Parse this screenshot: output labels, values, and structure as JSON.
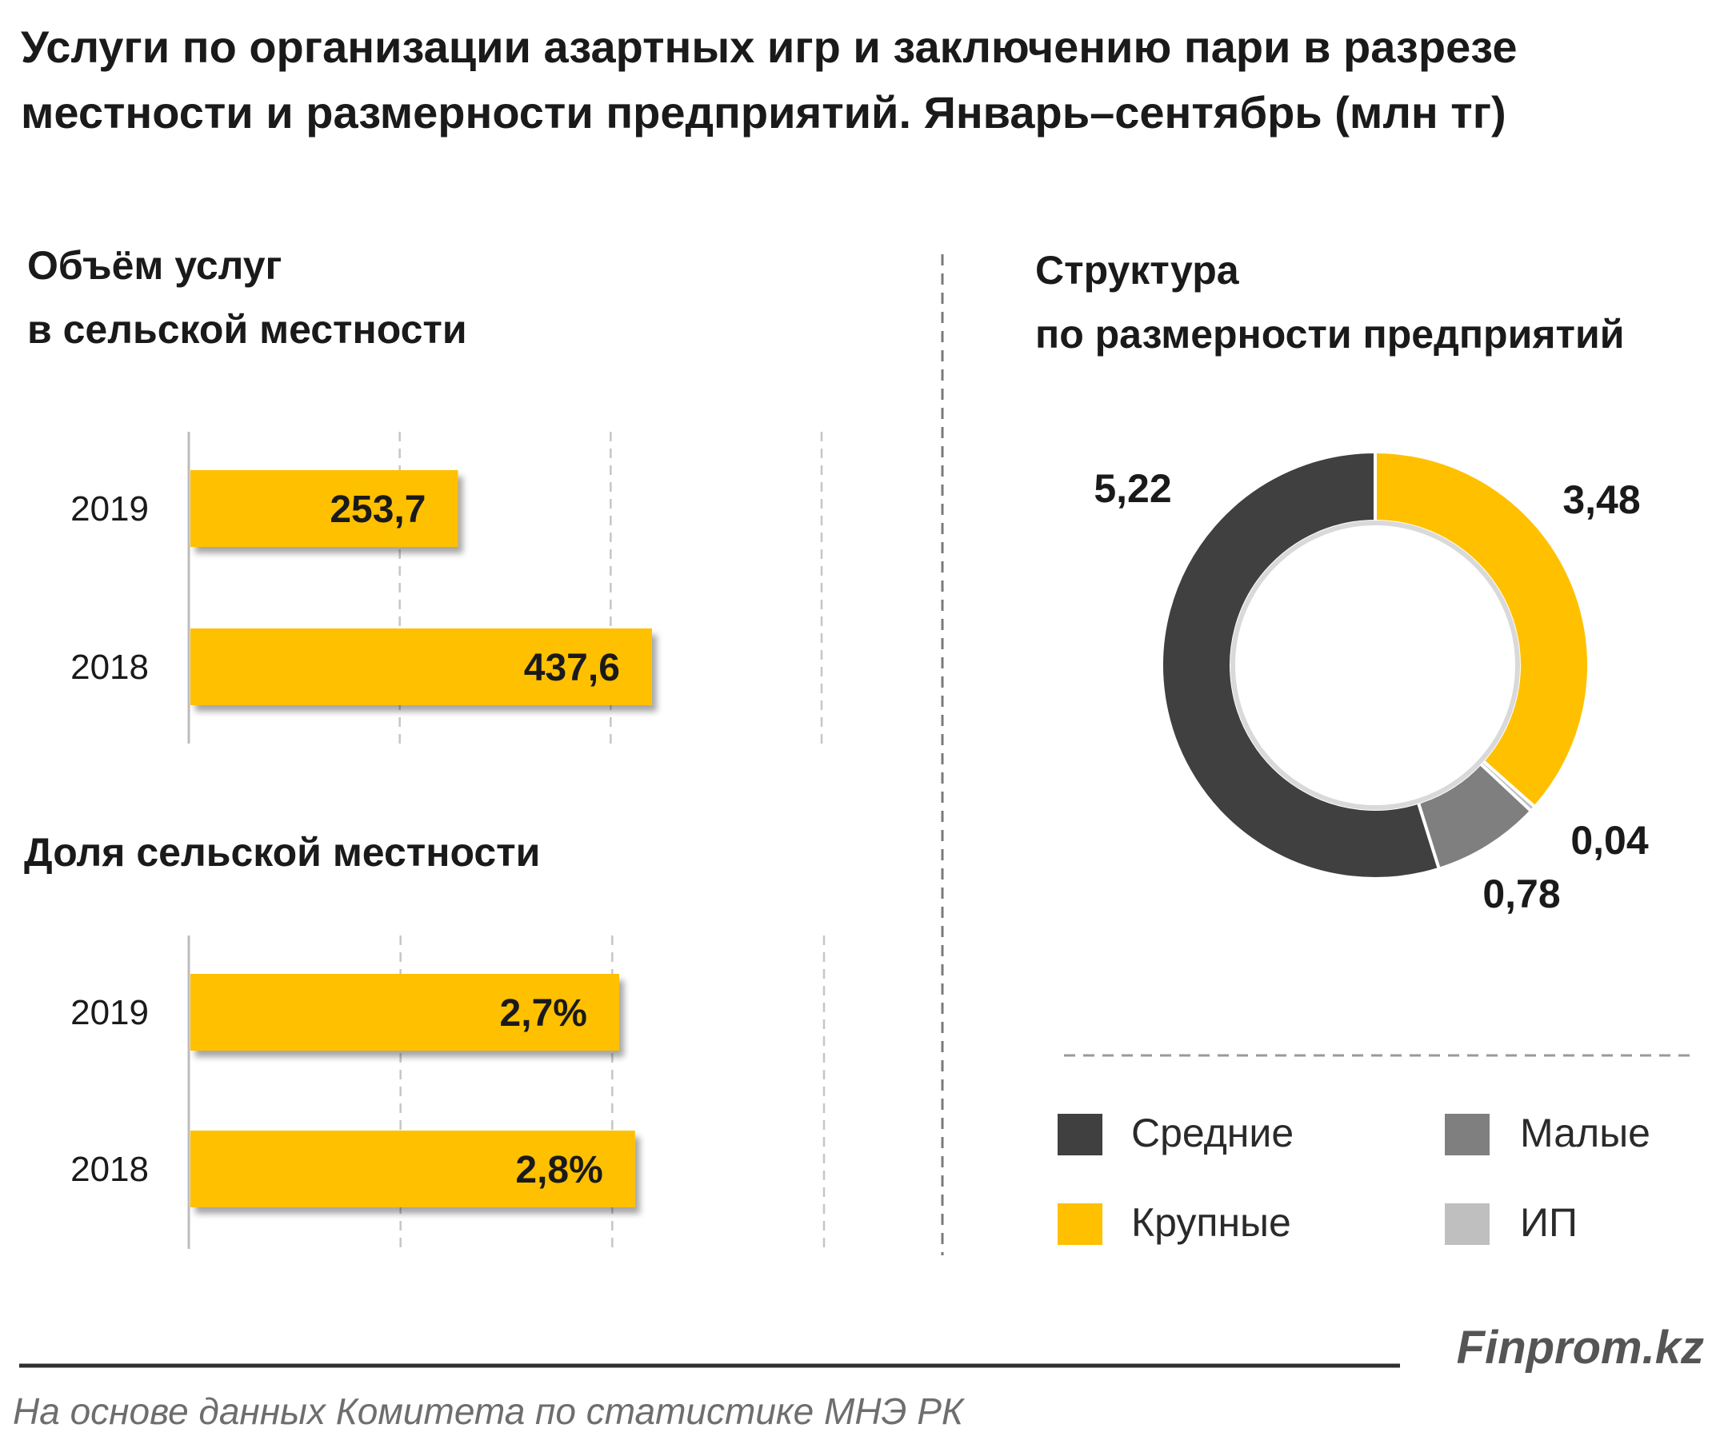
{
  "title_line1": "Услуги по организации азартных игр и заключению пари в разрезе",
  "title_line2": "местности и размерности предприятий. Январь–сентябрь (млн тг)",
  "volume_subtitle_line1": "Объём услуг",
  "volume_subtitle_line2": "в сельской местности",
  "share_subtitle": "Доля сельской местности",
  "structure_subtitle_line1": "Структура",
  "structure_subtitle_line2": "по размерности  предприятий",
  "legend": [
    {
      "label": "Средние",
      "color": "#404040"
    },
    {
      "label": "Малые",
      "color": "#7f7f7f"
    },
    {
      "label": "Крупные",
      "color": "#ffc000"
    },
    {
      "label": "ИП",
      "color": "#bfbfbf"
    }
  ],
  "brand": "Finprom.kz",
  "source": "На основе данных  Комитета по статистике МНЭ РК",
  "chart_data": [
    {
      "type": "bar",
      "orientation": "horizontal",
      "title": "Объём услуг в сельской местности",
      "categories": [
        "2019",
        "2018"
      ],
      "values": [
        253.7,
        437.6
      ],
      "value_labels": [
        "253,7",
        "437,6"
      ],
      "xlim": [
        0,
        600
      ],
      "grid": true,
      "color": "#ffc000"
    },
    {
      "type": "bar",
      "orientation": "horizontal",
      "title": "Доля сельской местности",
      "categories": [
        "2019",
        "2018"
      ],
      "values": [
        2.7,
        2.8
      ],
      "value_labels": [
        "2,7%",
        "2,8%"
      ],
      "xlim": [
        0,
        4
      ],
      "grid": true,
      "color": "#ffc000"
    },
    {
      "type": "pie",
      "variant": "donut",
      "title": "Структура по размерности предприятий",
      "slices": [
        {
          "name": "Крупные",
          "value": 3.48,
          "label": "3,48",
          "color": "#ffc000"
        },
        {
          "name": "ИП",
          "value": 0.04,
          "label": "0,04",
          "color": "#bfbfbf"
        },
        {
          "name": "Малые",
          "value": 0.78,
          "label": "0,78",
          "color": "#7f7f7f"
        },
        {
          "name": "Средние",
          "value": 5.22,
          "label": "5,22",
          "color": "#404040"
        }
      ]
    }
  ]
}
